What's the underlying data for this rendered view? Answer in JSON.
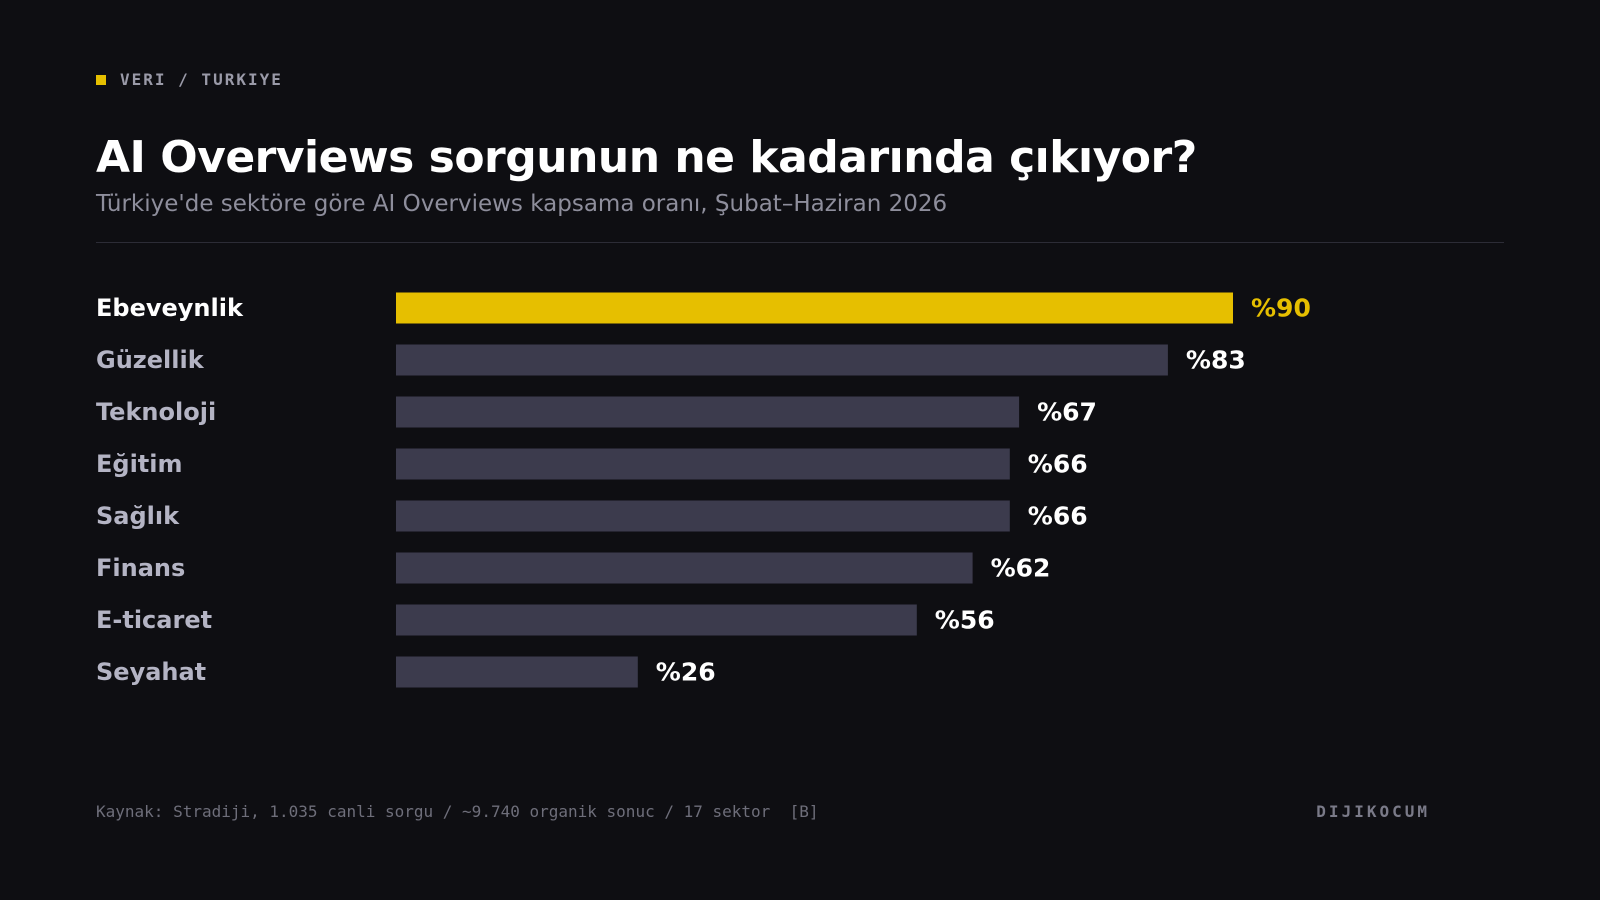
{
  "header": {
    "eyebrow": "VERI / TURKIYE",
    "title": "AI Overviews sorgunun ne kadarında çıkıyor?",
    "subtitle": "Türkiye'de sektöre göre AI Overviews kapsama oranı, Şubat–Haziran 2026"
  },
  "chart_data": {
    "type": "bar",
    "orientation": "horizontal",
    "categories": [
      "Ebeveynlik",
      "Güzellik",
      "Teknoloji",
      "Eğitim",
      "Sağlık",
      "Finans",
      "E-ticaret",
      "Seyahat"
    ],
    "values": [
      90,
      83,
      67,
      66,
      66,
      62,
      56,
      26
    ],
    "value_labels": [
      "%90",
      "%83",
      "%67",
      "%66",
      "%66",
      "%62",
      "%56",
      "%26"
    ],
    "xlim": [
      0,
      100
    ],
    "highlight_index": 0,
    "grid": false,
    "colors": {
      "highlight": "#e6bf00",
      "bar": "#3c3b4d",
      "label_highlight": "#ffffff",
      "label": "#b4b4c4",
      "value_highlight": "#e6bf00",
      "value": "#ffffff"
    }
  },
  "footer": {
    "source": "Kaynak: Stradiji, 1.035 canli sorgu / ~9.740 organik sonuc / 17 sektor  [B]",
    "brand": "DIJIKOCUM"
  }
}
